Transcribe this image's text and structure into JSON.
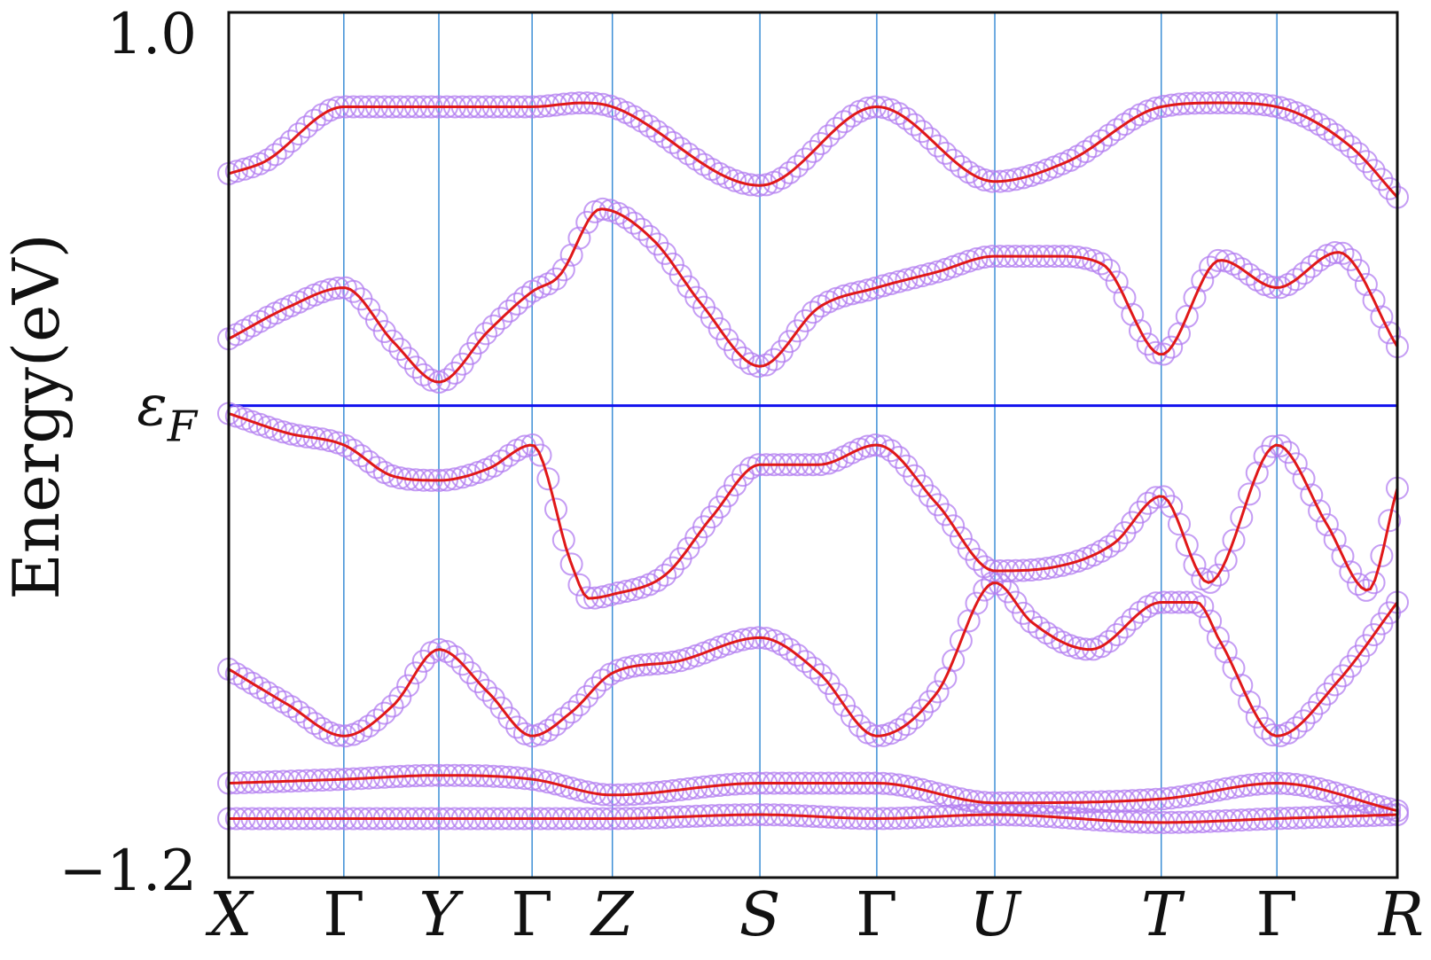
{
  "chart_data": {
    "type": "line",
    "title": "",
    "ylabel": "Energy(eV)",
    "xlabel": "",
    "ylim": [
      -1.2,
      1.0
    ],
    "y_ticks": [
      {
        "value": 1.0,
        "label": "1.0"
      },
      {
        "value": -1.2,
        "label": "−1.2"
      }
    ],
    "fermi_level": {
      "value": 0.0,
      "label": "εF"
    },
    "x_ticks": [
      "X",
      "Γ",
      "Y",
      "Γ",
      "Z",
      "S",
      "Γ",
      "U",
      "T",
      "Γ",
      "R"
    ],
    "x_tick_positions": [
      0,
      0.975,
      1.78,
      2.57,
      3.25,
      4.5,
      5.49,
      6.49,
      7.9,
      8.88,
      9.9
    ],
    "colors": {
      "band_line": "#e01818",
      "projection_marker": "#b27cf0",
      "fermi_line": "#1010ee",
      "k_lines": "#3d8fd6",
      "frame": "#111111"
    },
    "series": [
      {
        "x": [
          0,
          0.3,
          0.975,
          1.78,
          2.57,
          3.0,
          3.25,
          4.5,
          5.49,
          6.49,
          7.1,
          7.9,
          8.4,
          8.88,
          9.5,
          9.9
        ],
        "y": [
          0.59,
          0.62,
          0.76,
          0.76,
          0.76,
          0.77,
          0.76,
          0.56,
          0.76,
          0.57,
          0.62,
          0.76,
          0.77,
          0.76,
          0.66,
          0.53
        ]
      },
      {
        "x": [
          0,
          0.5,
          0.975,
          1.4,
          1.78,
          2.2,
          2.57,
          2.8,
          3.15,
          3.6,
          4.0,
          4.5,
          5.0,
          5.49,
          6.0,
          6.49,
          7.0,
          7.4,
          7.9,
          8.4,
          8.88,
          9.4,
          9.9
        ],
        "y": [
          0.17,
          0.25,
          0.3,
          0.16,
          0.06,
          0.19,
          0.29,
          0.33,
          0.5,
          0.42,
          0.26,
          0.1,
          0.25,
          0.3,
          0.34,
          0.38,
          0.38,
          0.36,
          0.13,
          0.37,
          0.3,
          0.39,
          0.15
        ]
      },
      {
        "x": [
          0,
          0.5,
          0.975,
          1.4,
          1.78,
          2.2,
          2.57,
          2.9,
          3.05,
          3.25,
          3.7,
          4.1,
          4.5,
          5.0,
          5.49,
          6.0,
          6.49,
          7.0,
          7.5,
          7.9,
          8.3,
          8.88,
          9.3,
          9.65,
          9.9
        ],
        "y": [
          -0.02,
          -0.07,
          -0.1,
          -0.18,
          -0.19,
          -0.16,
          -0.1,
          -0.4,
          -0.49,
          -0.48,
          -0.43,
          -0.28,
          -0.15,
          -0.15,
          -0.1,
          -0.25,
          -0.42,
          -0.41,
          -0.35,
          -0.23,
          -0.45,
          -0.1,
          -0.3,
          -0.47,
          -0.21
        ]
      },
      {
        "x": [
          0,
          0.5,
          0.975,
          1.4,
          1.78,
          2.2,
          2.57,
          2.9,
          3.25,
          3.8,
          4.5,
          5.0,
          5.49,
          6.0,
          6.49,
          6.8,
          7.3,
          7.9,
          8.2,
          8.4,
          8.88,
          9.4,
          9.9
        ],
        "y": [
          -0.67,
          -0.76,
          -0.84,
          -0.76,
          -0.62,
          -0.73,
          -0.84,
          -0.78,
          -0.68,
          -0.65,
          -0.59,
          -0.68,
          -0.84,
          -0.73,
          -0.45,
          -0.55,
          -0.62,
          -0.5,
          -0.5,
          -0.6,
          -0.84,
          -0.7,
          -0.5
        ]
      },
      {
        "x": [
          0,
          0.975,
          1.78,
          2.57,
          3.25,
          4.5,
          5.49,
          6.49,
          7.9,
          8.88,
          9.9
        ],
        "y": [
          -0.96,
          -0.95,
          -0.94,
          -0.95,
          -0.99,
          -0.96,
          -0.96,
          -1.01,
          -1.0,
          -0.96,
          -1.03
        ]
      },
      {
        "x": [
          0,
          0.975,
          1.78,
          2.57,
          3.25,
          4.5,
          5.49,
          6.49,
          7.9,
          8.88,
          9.9
        ],
        "y": [
          -1.05,
          -1.05,
          -1.05,
          -1.05,
          -1.05,
          -1.04,
          -1.05,
          -1.04,
          -1.06,
          -1.05,
          -1.04
        ]
      }
    ]
  }
}
